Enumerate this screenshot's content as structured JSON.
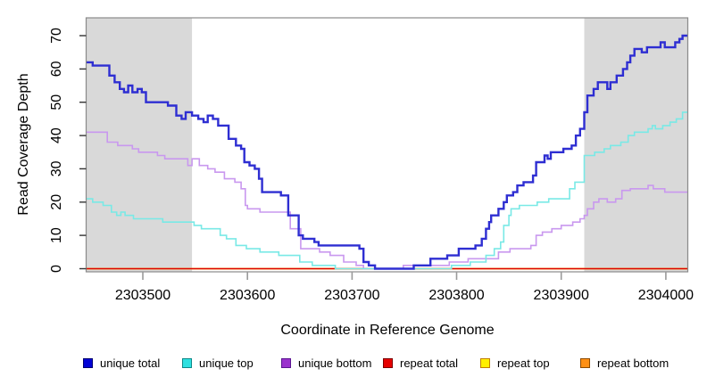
{
  "chart_data": {
    "type": "line",
    "subtype": "step",
    "title": "",
    "xlabel": "Coordinate in Reference Genome",
    "ylabel": "Read Coverage Depth",
    "x_range": [
      2303446,
      2304021
    ],
    "y_range": [
      0,
      75
    ],
    "x_ticks": [
      2303500,
      2303600,
      2303700,
      2303800,
      2303900,
      2304000
    ],
    "y_ticks": [
      0,
      10,
      20,
      30,
      40,
      50,
      60,
      70
    ],
    "grid": false,
    "legend_position": "bottom",
    "shaded_regions": [
      {
        "from": 2303446,
        "to": 2303547,
        "color": "#d9d9d9"
      },
      {
        "from": 2303922,
        "to": 2304021,
        "color": "#d9d9d9"
      }
    ],
    "background_color": "#ffffff",
    "box_color": "#8a8a8a",
    "series": [
      {
        "name": "unique total",
        "color": "#2e2ed2",
        "legend_fill": "#0202d6",
        "legend_border": "#000070",
        "width": 2.4,
        "points": [
          [
            2303446,
            62
          ],
          [
            2303452,
            61
          ],
          [
            2303468,
            58
          ],
          [
            2303473,
            56
          ],
          [
            2303478,
            54
          ],
          [
            2303482,
            53
          ],
          [
            2303486,
            55
          ],
          [
            2303490,
            53
          ],
          [
            2303495,
            54
          ],
          [
            2303499,
            53
          ],
          [
            2303503,
            50
          ],
          [
            2303524,
            49
          ],
          [
            2303532,
            46
          ],
          [
            2303537,
            45
          ],
          [
            2303541,
            47
          ],
          [
            2303547,
            46
          ],
          [
            2303553,
            45
          ],
          [
            2303558,
            44
          ],
          [
            2303562,
            46
          ],
          [
            2303567,
            45
          ],
          [
            2303572,
            43
          ],
          [
            2303582,
            39
          ],
          [
            2303589,
            37
          ],
          [
            2303594,
            36
          ],
          [
            2303597,
            32
          ],
          [
            2303602,
            31
          ],
          [
            2303607,
            30
          ],
          [
            2303611,
            27
          ],
          [
            2303614,
            23
          ],
          [
            2303632,
            22
          ],
          [
            2303639,
            16
          ],
          [
            2303649,
            10
          ],
          [
            2303653,
            9
          ],
          [
            2303664,
            8
          ],
          [
            2303668,
            7
          ],
          [
            2303707,
            6
          ],
          [
            2303711,
            2
          ],
          [
            2303716,
            1
          ],
          [
            2303722,
            0
          ],
          [
            2303759,
            1
          ],
          [
            2303775,
            3
          ],
          [
            2303791,
            4
          ],
          [
            2303802,
            6
          ],
          [
            2303818,
            7
          ],
          [
            2303824,
            9
          ],
          [
            2303828,
            12
          ],
          [
            2303831,
            14
          ],
          [
            2303833,
            16
          ],
          [
            2303840,
            18
          ],
          [
            2303845,
            20
          ],
          [
            2303848,
            22
          ],
          [
            2303854,
            23
          ],
          [
            2303858,
            25
          ],
          [
            2303864,
            26
          ],
          [
            2303873,
            28
          ],
          [
            2303876,
            32
          ],
          [
            2303884,
            34
          ],
          [
            2303887,
            33
          ],
          [
            2303890,
            35
          ],
          [
            2303902,
            36
          ],
          [
            2303910,
            37
          ],
          [
            2303914,
            40
          ],
          [
            2303918,
            42
          ],
          [
            2303922,
            47
          ],
          [
            2303925,
            52
          ],
          [
            2303931,
            54
          ],
          [
            2303935,
            56
          ],
          [
            2303944,
            54
          ],
          [
            2303947,
            56
          ],
          [
            2303953,
            58
          ],
          [
            2303959,
            60
          ],
          [
            2303963,
            62
          ],
          [
            2303966,
            64
          ],
          [
            2303970,
            66
          ],
          [
            2303977,
            65
          ],
          [
            2303982,
            66.5
          ],
          [
            2303995,
            68
          ],
          [
            2303999,
            66.5
          ],
          [
            2304009,
            68
          ],
          [
            2304013,
            69
          ],
          [
            2304016,
            70
          ]
        ]
      },
      {
        "name": "unique top",
        "color": "#79e9e6",
        "legend_fill": "#2ee0e0",
        "legend_border": "#0e8888",
        "width": 1.6,
        "points": [
          [
            2303446,
            21
          ],
          [
            2303452,
            20
          ],
          [
            2303462,
            19
          ],
          [
            2303470,
            17
          ],
          [
            2303475,
            16
          ],
          [
            2303479,
            17
          ],
          [
            2303483,
            16
          ],
          [
            2303491,
            15
          ],
          [
            2303519,
            14
          ],
          [
            2303549,
            13
          ],
          [
            2303556,
            12
          ],
          [
            2303574,
            10
          ],
          [
            2303580,
            9
          ],
          [
            2303589,
            7
          ],
          [
            2303599,
            6
          ],
          [
            2303612,
            5
          ],
          [
            2303630,
            4
          ],
          [
            2303650,
            2
          ],
          [
            2303662,
            1
          ],
          [
            2303684,
            0
          ],
          [
            2303795,
            1
          ],
          [
            2303813,
            2
          ],
          [
            2303828,
            4
          ],
          [
            2303836,
            6
          ],
          [
            2303842,
            8
          ],
          [
            2303845,
            13
          ],
          [
            2303850,
            16
          ],
          [
            2303852,
            18
          ],
          [
            2303860,
            19
          ],
          [
            2303877,
            20
          ],
          [
            2303888,
            21
          ],
          [
            2303908,
            24
          ],
          [
            2303913,
            26
          ],
          [
            2303922,
            34
          ],
          [
            2303932,
            35
          ],
          [
            2303941,
            36
          ],
          [
            2303947,
            37
          ],
          [
            2303957,
            38
          ],
          [
            2303964,
            40
          ],
          [
            2303970,
            41
          ],
          [
            2303983,
            42
          ],
          [
            2303987,
            43
          ],
          [
            2303990,
            42
          ],
          [
            2303997,
            43
          ],
          [
            2304004,
            44
          ],
          [
            2304010,
            45
          ],
          [
            2304016,
            47
          ]
        ]
      },
      {
        "name": "unique bottom",
        "color": "#c998ef",
        "legend_fill": "#9a32cd",
        "legend_border": "#5a1691",
        "width": 1.6,
        "points": [
          [
            2303446,
            41
          ],
          [
            2303466,
            38
          ],
          [
            2303476,
            37
          ],
          [
            2303490,
            36
          ],
          [
            2303496,
            35
          ],
          [
            2303514,
            34
          ],
          [
            2303521,
            33
          ],
          [
            2303543,
            31
          ],
          [
            2303547,
            33
          ],
          [
            2303554,
            31
          ],
          [
            2303562,
            30
          ],
          [
            2303569,
            29
          ],
          [
            2303578,
            27
          ],
          [
            2303588,
            26
          ],
          [
            2303594,
            24
          ],
          [
            2303598,
            19
          ],
          [
            2303600,
            18
          ],
          [
            2303612,
            17
          ],
          [
            2303641,
            12
          ],
          [
            2303651,
            6
          ],
          [
            2303669,
            5
          ],
          [
            2303679,
            4
          ],
          [
            2303692,
            2
          ],
          [
            2303704,
            1
          ],
          [
            2303711,
            0
          ],
          [
            2303749,
            1
          ],
          [
            2303793,
            2
          ],
          [
            2303811,
            3
          ],
          [
            2303840,
            5
          ],
          [
            2303851,
            6
          ],
          [
            2303871,
            7
          ],
          [
            2303876,
            10
          ],
          [
            2303882,
            11
          ],
          [
            2303891,
            12
          ],
          [
            2303900,
            13
          ],
          [
            2303911,
            14
          ],
          [
            2303918,
            15
          ],
          [
            2303922,
            16
          ],
          [
            2303925,
            18
          ],
          [
            2303931,
            20
          ],
          [
            2303936,
            21
          ],
          [
            2303944,
            20
          ],
          [
            2303952,
            21
          ],
          [
            2303958,
            23.5
          ],
          [
            2303966,
            24
          ],
          [
            2303983,
            25
          ],
          [
            2303988,
            24
          ],
          [
            2303999,
            23
          ]
        ]
      },
      {
        "name": "repeat total",
        "color": "#dd0000",
        "legend_fill": "#e60000",
        "legend_border": "#7d0000",
        "width": 1.6,
        "points": [
          [
            2303446,
            0
          ]
        ]
      },
      {
        "name": "repeat top",
        "color": "#fff000",
        "legend_fill": "#fff000",
        "legend_border": "#c07d00",
        "width": 1.6,
        "points": [
          [
            2303446,
            0
          ]
        ]
      },
      {
        "name": "repeat bottom",
        "color": "#ff9014",
        "legend_fill": "#ff9014",
        "legend_border": "#8c4a00",
        "width": 1.6,
        "points": [
          [
            2303446,
            0
          ]
        ]
      }
    ]
  }
}
